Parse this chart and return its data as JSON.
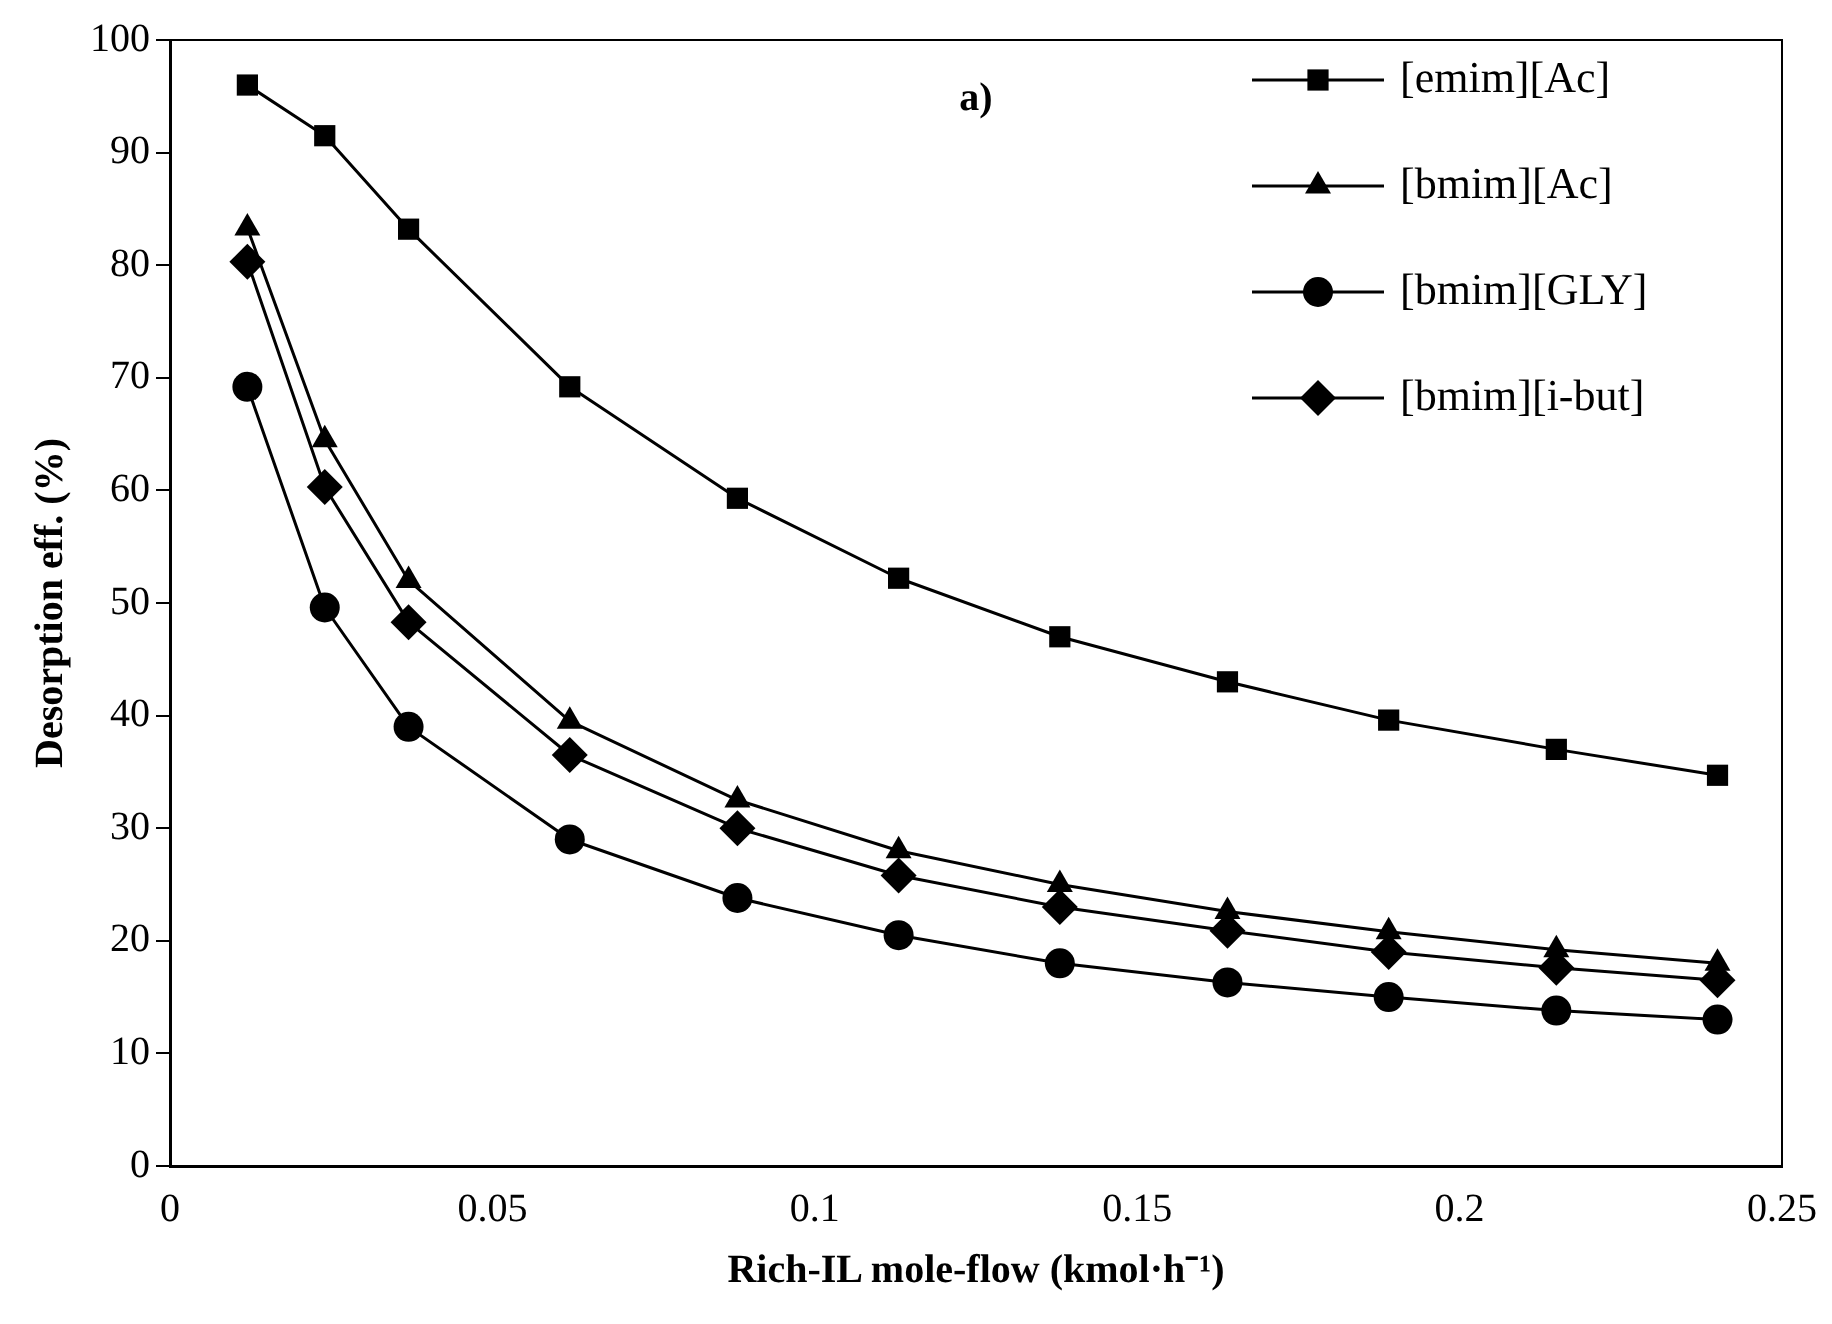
{
  "chart_data": {
    "type": "line",
    "xlabel": "Rich-IL mole-flow (kmol·h⁻¹)",
    "ylabel": "Desorption eff. (%)",
    "annotations": [
      "a)"
    ],
    "x": [
      0.012,
      0.024,
      0.037,
      0.062,
      0.088,
      0.113,
      0.138,
      0.164,
      0.189,
      0.215,
      0.24
    ],
    "xlim": [
      0,
      0.25
    ],
    "xticks": [
      0,
      0.05,
      0.1,
      0.15,
      0.2,
      0.25
    ],
    "ylim": [
      0,
      100
    ],
    "yticks": [
      0,
      10,
      20,
      30,
      40,
      50,
      60,
      70,
      80,
      90,
      100
    ],
    "grid": false,
    "legend": "top right",
    "line_style": "solid",
    "series": [
      {
        "name": "[emim][Ac]",
        "color": "#000000",
        "marker": "square",
        "values": [
          96,
          91.5,
          83.2,
          69.2,
          59.3,
          52.2,
          47,
          43,
          39.6,
          37,
          34.7
        ]
      },
      {
        "name": "[bmim][Ac]",
        "color": "#000000",
        "marker": "triangle",
        "values": [
          83.3,
          64.5,
          52,
          39.5,
          32.5,
          28,
          25,
          22.6,
          20.8,
          19.2,
          18
        ]
      },
      {
        "name": "[bmim][GLY]",
        "color": "#000000",
        "marker": "circle",
        "values": [
          69.2,
          49.6,
          39,
          29,
          23.8,
          20.5,
          18,
          16.3,
          15,
          13.8,
          13
        ]
      },
      {
        "name": "[bmim][i-but]",
        "color": "#000000",
        "marker": "diamond",
        "values": [
          80.3,
          60.3,
          48.3,
          36.5,
          30,
          25.8,
          23,
          20.9,
          19,
          17.6,
          16.5
        ]
      }
    ]
  }
}
